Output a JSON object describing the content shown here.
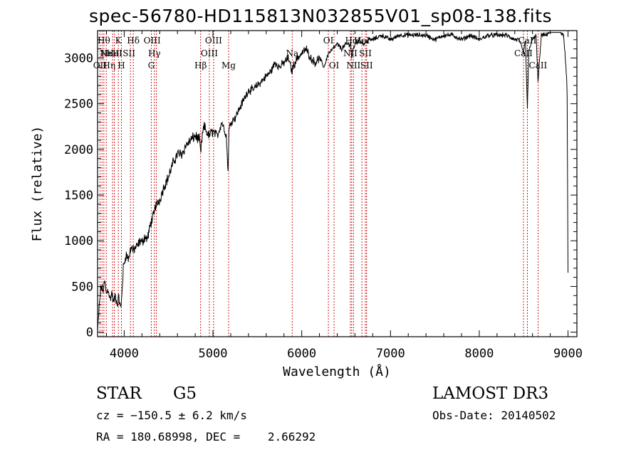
{
  "chart_data": {
    "type": "line",
    "title": "spec-56780-HD115813N032855V01_sp08-138.fits",
    "xlabel": "Wavelength (Å)",
    "ylabel": "Flux (relative)",
    "xlim": [
      3700,
      9100
    ],
    "ylim": [
      -50,
      3300
    ],
    "x_ticks": [
      4000,
      5000,
      6000,
      7000,
      8000,
      9000
    ],
    "y_ticks": [
      0,
      500,
      1000,
      1500,
      2000,
      2500,
      3000
    ],
    "series": [
      {
        "name": "flux",
        "x": [
          3700,
          3720,
          3740,
          3760,
          3780,
          3800,
          3820,
          3840,
          3860,
          3880,
          3900,
          3920,
          3940,
          3960,
          3970,
          3990,
          4020,
          4050,
          4080,
          4100,
          4120,
          4150,
          4180,
          4200,
          4230,
          4260,
          4280,
          4300,
          4320,
          4340,
          4350,
          4370,
          4400,
          4450,
          4500,
          4550,
          4600,
          4650,
          4700,
          4750,
          4800,
          4850,
          4860,
          4880,
          4900,
          4950,
          5000,
          5050,
          5100,
          5150,
          5170,
          5180,
          5200,
          5250,
          5300,
          5350,
          5400,
          5450,
          5500,
          5550,
          5600,
          5650,
          5700,
          5750,
          5800,
          5850,
          5890,
          5900,
          5950,
          6000,
          6050,
          6100,
          6150,
          6200,
          6250,
          6300,
          6350,
          6400,
          6450,
          6500,
          6550,
          6563,
          6580,
          6600,
          6650,
          6700,
          6750,
          6800,
          6900,
          7000,
          7100,
          7200,
          7300,
          7400,
          7500,
          7600,
          7700,
          7800,
          7900,
          8000,
          8100,
          8200,
          8300,
          8400,
          8450,
          8498,
          8520,
          8542,
          8560,
          8600,
          8640,
          8662,
          8700,
          8750,
          8800,
          8850,
          8900,
          8950,
          8980,
          8990,
          9000
        ],
        "values": [
          0,
          300,
          500,
          450,
          550,
          420,
          480,
          350,
          430,
          320,
          400,
          300,
          380,
          250,
          350,
          700,
          850,
          800,
          950,
          880,
          920,
          940,
          1000,
          980,
          1040,
          1020,
          1100,
          1200,
          1250,
          1300,
          1380,
          1400,
          1450,
          1600,
          1700,
          1850,
          1950,
          1950,
          2050,
          2100,
          2150,
          2100,
          1950,
          2150,
          2250,
          2150,
          2200,
          2150,
          2300,
          2150,
          1750,
          2200,
          2300,
          2350,
          2450,
          2550,
          2650,
          2650,
          2700,
          2750,
          2800,
          2850,
          2950,
          2900,
          2950,
          3000,
          2850,
          2900,
          3000,
          3050,
          3100,
          3000,
          2950,
          3000,
          2900,
          3050,
          3100,
          3150,
          3100,
          3150,
          3150,
          3000,
          3100,
          3150,
          3200,
          3150,
          3200,
          3200,
          3250,
          3200,
          3250,
          3250,
          3250,
          3250,
          3200,
          3250,
          3250,
          3200,
          3250,
          3200,
          3250,
          3250,
          3250,
          3200,
          3200,
          3050,
          3200,
          2450,
          3100,
          3200,
          3250,
          2750,
          3250,
          3250,
          3300,
          3300,
          3300,
          3250,
          2850,
          2600,
          650
        ]
      }
    ],
    "lines": [
      {
        "wl": 3727,
        "top": "OII",
        "tier": 2,
        "dx": 0
      },
      {
        "wl": 3750,
        "top": "Hη",
        "tier": 2,
        "dx": 10
      },
      {
        "wl": 3771,
        "top": "Hθ",
        "tier": 0,
        "dx": 0
      },
      {
        "wl": 3798,
        "top": "Hι",
        "tier": 1,
        "dx": 0
      },
      {
        "wl": 3869,
        "top": "NeIII",
        "tier": 1,
        "dx": -2
      },
      {
        "wl": 3889,
        "top": "HeI",
        "tier": 1,
        "dx": 0
      },
      {
        "wl": 3934,
        "top": "K",
        "tier": 0,
        "dx": 0
      },
      {
        "wl": 3969,
        "top": "H",
        "tier": 2,
        "dx": 0
      },
      {
        "wl": 4070,
        "top": "SII",
        "tier": 1,
        "dx": -2
      },
      {
        "wl": 4102,
        "top": "Hδ",
        "tier": 0,
        "dx": 0
      },
      {
        "wl": 4305,
        "top": "G",
        "tier": 2,
        "dx": 0
      },
      {
        "wl": 4340,
        "top": "Hγ",
        "tier": 1,
        "dx": 0
      },
      {
        "wl": 4363,
        "top": "OIII",
        "tier": 0,
        "dx": -6
      },
      {
        "wl": 4861,
        "top": "Hβ",
        "tier": 2,
        "dx": 0
      },
      {
        "wl": 4959,
        "top": "OIII",
        "tier": 1,
        "dx": 0
      },
      {
        "wl": 5007,
        "top": "OIII",
        "tier": 0,
        "dx": 0
      },
      {
        "wl": 5176,
        "top": "Mg",
        "tier": 2,
        "dx": 0
      },
      {
        "wl": 5893,
        "top": "Na",
        "tier": 1,
        "dx": 0
      },
      {
        "wl": 6300,
        "top": "OI",
        "tier": 0,
        "dx": 0
      },
      {
        "wl": 6364,
        "top": "OI",
        "tier": 2,
        "dx": 0
      },
      {
        "wl": 6548,
        "top": "NII",
        "tier": 1,
        "dx": 0
      },
      {
        "wl": 6563,
        "top": "Hα",
        "tier": 0,
        "dx": 0
      },
      {
        "wl": 6583,
        "top": "NII",
        "tier": 2,
        "dx": 0
      },
      {
        "wl": 6678,
        "top": "HeI",
        "tier": 0,
        "dx": 0
      },
      {
        "wl": 6717,
        "top": "SII",
        "tier": 1,
        "dx": 0
      },
      {
        "wl": 6731,
        "top": "SII",
        "tier": 2,
        "dx": 0
      },
      {
        "wl": 8498,
        "top": "CaII",
        "tier": 1,
        "dx": 0
      },
      {
        "wl": 8542,
        "top": "CaII",
        "tier": 0,
        "dx": 0
      },
      {
        "wl": 8662,
        "top": "CaII",
        "tier": 2,
        "dx": 0
      }
    ]
  },
  "footer": {
    "object_class": "STAR",
    "subclass": "G5",
    "survey": "LAMOST DR3",
    "cz": "cz = −150.5 ± 6.2 km/s",
    "obs_date": "Obs-Date: 20140502",
    "coords": "RA = 180.68998, DEC =    2.66292"
  },
  "colors": {
    "spectrum": "#000000",
    "line_marker": "#cc0000",
    "axes": "#000000"
  }
}
